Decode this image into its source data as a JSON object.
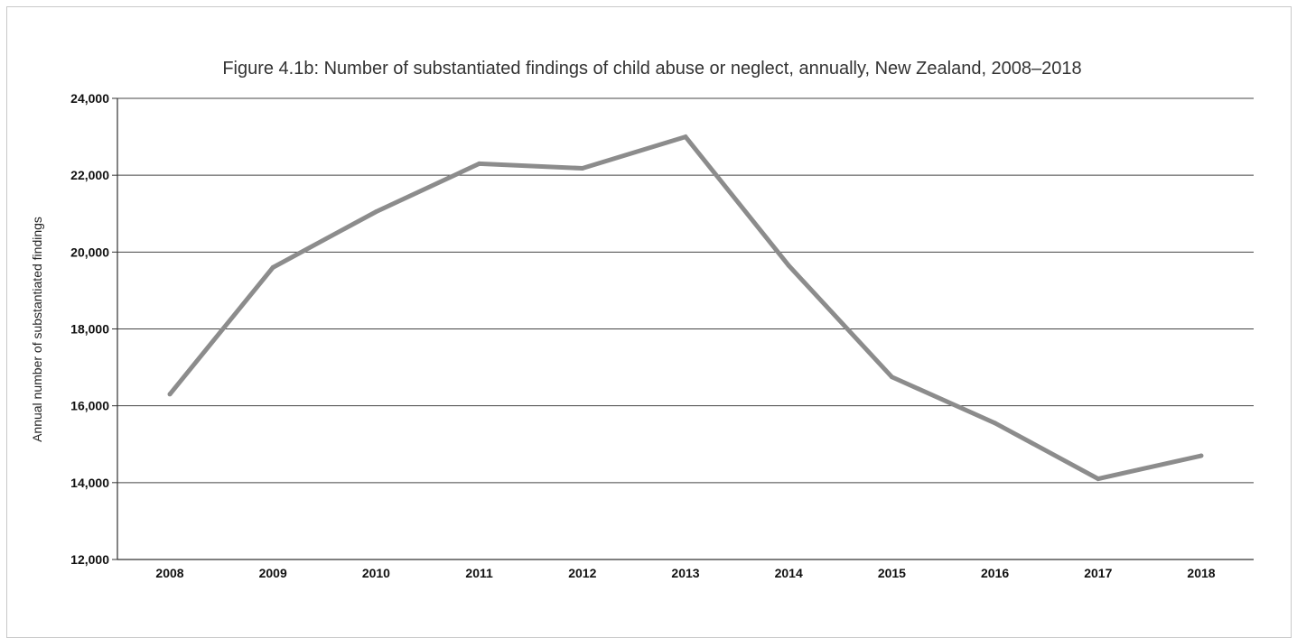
{
  "chart_data": {
    "type": "line",
    "title": "Figure 4.1b: Number of substantiated findings of child abuse or neglect, annually, New Zealand, 2008–2018",
    "xlabel": "",
    "ylabel": "Annual number of substantiated findings",
    "categories": [
      "2008",
      "2009",
      "2010",
      "2011",
      "2012",
      "2013",
      "2014",
      "2015",
      "2016",
      "2017",
      "2018"
    ],
    "series": [
      {
        "values": [
          16300,
          19600,
          21050,
          22300,
          22180,
          23000,
          19650,
          16750,
          15550,
          14100,
          14700
        ],
        "color": "#8c8c8c"
      }
    ],
    "ylim": [
      12000,
      24000
    ],
    "yticks": [
      {
        "value": 12000,
        "label": "12,000"
      },
      {
        "value": 14000,
        "label": "14,000"
      },
      {
        "value": 16000,
        "label": "16,000"
      },
      {
        "value": 18000,
        "label": "18,000"
      },
      {
        "value": 20000,
        "label": "20,000"
      },
      {
        "value": 22000,
        "label": "22,000"
      },
      {
        "value": 24000,
        "label": "24,000"
      }
    ],
    "grid": true,
    "legend": "none"
  }
}
